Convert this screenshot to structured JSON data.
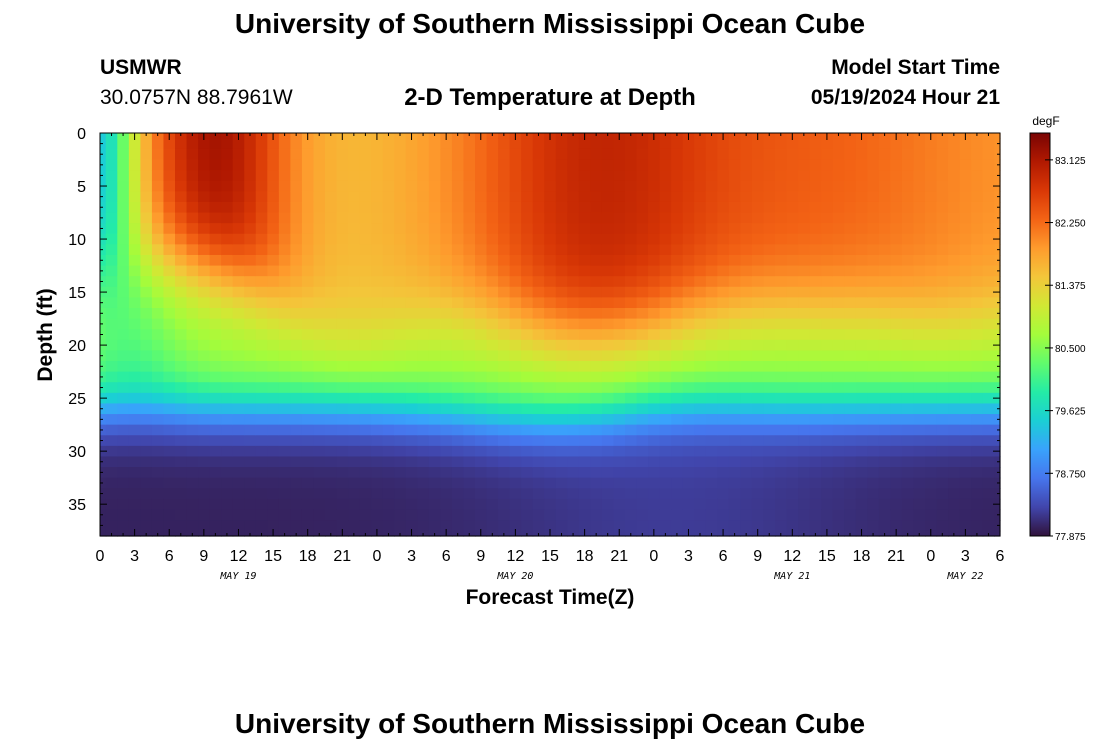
{
  "header": {
    "title": "University of Southern Mississippi Ocean Cube",
    "station_name": "USMWR",
    "station_coords": "30.0757N  88.7961W",
    "subtitle": "2-D Temperature at Depth",
    "model_start_label": "Model Start Time",
    "model_start_value": "05/19/2024 Hour 21"
  },
  "footer": {
    "title": "University of Southern Mississippi Ocean Cube"
  },
  "chart_data": {
    "type": "heatmap",
    "title": "2-D Temperature at Depth",
    "xlabel": "Forecast Time(Z)",
    "ylabel": "Depth (ft)",
    "x_unit": "hours since 05/19/2024 00Z",
    "xlim": [
      0,
      78
    ],
    "ylim": [
      0,
      38
    ],
    "y_inverted": true,
    "x_tick_labels": [
      "0",
      "3",
      "6",
      "9",
      "12",
      "15",
      "18",
      "21",
      "0",
      "3",
      "6",
      "9",
      "12",
      "15",
      "18",
      "21",
      "0",
      "3",
      "6",
      "9",
      "12",
      "15",
      "18",
      "21",
      "0",
      "3",
      "6"
    ],
    "y_ticks": [
      0,
      5,
      10,
      15,
      20,
      25,
      30,
      35
    ],
    "y_tick_labels": [
      "0",
      "5",
      "10",
      "15",
      "20",
      "25",
      "30",
      "35"
    ],
    "date_labels": [
      {
        "label": "MAY 19",
        "hour": 12
      },
      {
        "label": "MAY 20",
        "hour": 36
      },
      {
        "label": "MAY 21",
        "hour": 60
      },
      {
        "label": "MAY 22",
        "hour": 75
      }
    ],
    "colorbar": {
      "unit": "degF",
      "min": 77.875,
      "max": 83.5,
      "ticks": [
        "77.875",
        "78.750",
        "79.625",
        "80.500",
        "81.375",
        "82.250",
        "83.125"
      ]
    },
    "summary": "Warm surface layer (about 82-83.5 degF) in the upper 10-20 ft, warmest near 10Z May 19 and 21Z May 20; a thermocline near 20-28 ft; cool bottom water (about 78-79 degF) below 30 ft.",
    "colors": {
      "stops": [
        "#30123b",
        "#4145ab",
        "#4675ed",
        "#39a2fc",
        "#1bcfd4",
        "#24eca6",
        "#61fc6c",
        "#a4fc3b",
        "#d1e834",
        "#f3c63a",
        "#fe9b2d",
        "#f36315",
        "#d93806",
        "#b11901",
        "#7a0403"
      ]
    }
  }
}
